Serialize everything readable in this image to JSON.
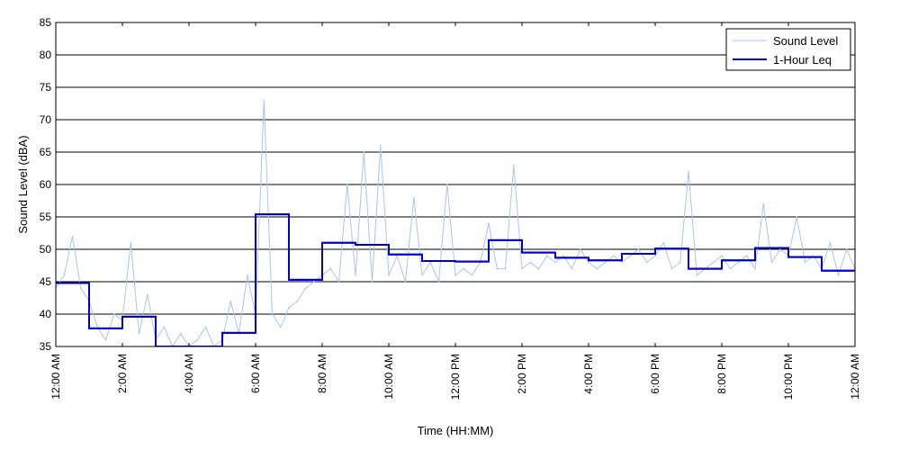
{
  "chart_data": {
    "type": "line",
    "title": "",
    "xlabel": "Time (HH:MM)",
    "ylabel": "Sound Level (dBA)",
    "ylim": [
      35,
      85
    ],
    "xlim_hours": [
      0,
      24
    ],
    "grid": "horizontal",
    "legend_placement": "top-right",
    "y_ticks": [
      35,
      40,
      45,
      50,
      55,
      60,
      65,
      70,
      75,
      80,
      85
    ],
    "x_ticks": [
      {
        "hour": 0,
        "label": "12:00 AM"
      },
      {
        "hour": 2,
        "label": "2:00 AM"
      },
      {
        "hour": 4,
        "label": "4:00 AM"
      },
      {
        "hour": 6,
        "label": "6:00 AM"
      },
      {
        "hour": 8,
        "label": "8:00 AM"
      },
      {
        "hour": 10,
        "label": "10:00 AM"
      },
      {
        "hour": 12,
        "label": "12:00 PM"
      },
      {
        "hour": 14,
        "label": "2:00 PM"
      },
      {
        "hour": 16,
        "label": "4:00 PM"
      },
      {
        "hour": 18,
        "label": "6:00 PM"
      },
      {
        "hour": 20,
        "label": "8:00 PM"
      },
      {
        "hour": 22,
        "label": "10:00 PM"
      },
      {
        "hour": 24,
        "label": "12:00 AM"
      }
    ],
    "series": [
      {
        "name": "Sound Level",
        "color": "#aac4f0",
        "style": "thin-line",
        "x_hours": [
          0,
          0.25,
          0.5,
          0.75,
          1,
          1.25,
          1.5,
          1.75,
          2,
          2.25,
          2.5,
          2.75,
          3,
          3.25,
          3.5,
          3.75,
          4,
          4.25,
          4.5,
          4.75,
          5,
          5.25,
          5.5,
          5.75,
          6,
          6.25,
          6.5,
          6.75,
          7,
          7.25,
          7.5,
          7.75,
          8,
          8.25,
          8.5,
          8.75,
          9,
          9.25,
          9.5,
          9.75,
          10,
          10.25,
          10.5,
          10.75,
          11,
          11.25,
          11.5,
          11.75,
          12,
          12.25,
          12.5,
          12.75,
          13,
          13.25,
          13.5,
          13.75,
          14,
          14.25,
          14.5,
          14.75,
          15,
          15.25,
          15.5,
          15.75,
          16,
          16.25,
          16.5,
          16.75,
          17,
          17.25,
          17.5,
          17.75,
          18,
          18.25,
          18.5,
          18.75,
          19,
          19.25,
          19.5,
          19.75,
          20,
          20.25,
          20.5,
          20.75,
          21,
          21.25,
          21.5,
          21.75,
          22,
          22.25,
          22.5,
          22.75,
          23,
          23.25,
          23.5,
          23.75,
          24
        ],
        "values": [
          44,
          46,
          52,
          44,
          42,
          38,
          36,
          40,
          39,
          51,
          37,
          43,
          36,
          38,
          35,
          37,
          35,
          36,
          38,
          35,
          36,
          42,
          37,
          46,
          40,
          73,
          40,
          38,
          41,
          42,
          44,
          45,
          46,
          47,
          45,
          60,
          46,
          65,
          45,
          66,
          46,
          49,
          45,
          58,
          46,
          48,
          45,
          60,
          46,
          47,
          46,
          48,
          54,
          47,
          47,
          63,
          47,
          48,
          47,
          49,
          48,
          49,
          47,
          50,
          48,
          47,
          48,
          49,
          48,
          49,
          50,
          48,
          49,
          51,
          47,
          48,
          62,
          46,
          47,
          48,
          49,
          47,
          48,
          49,
          47,
          57,
          48,
          50,
          49,
          55,
          48,
          49,
          47,
          51,
          46,
          50,
          47
        ]
      },
      {
        "name": "1-Hour Leq",
        "color": "#0000cc",
        "style": "step",
        "hour_starts": [
          0,
          1,
          2,
          3,
          4,
          5,
          6,
          7,
          8,
          9,
          10,
          11,
          12,
          13,
          14,
          15,
          16,
          17,
          18,
          19,
          20,
          21,
          22,
          23
        ],
        "values": [
          44.8,
          37.8,
          39.6,
          34.5,
          34.5,
          37.1,
          55.4,
          45.3,
          51.0,
          50.7,
          49.2,
          48.2,
          48.1,
          51.4,
          49.5,
          48.7,
          48.3,
          49.3,
          50.1,
          47.0,
          48.3,
          50.2,
          48.8,
          46.7
        ]
      }
    ]
  }
}
